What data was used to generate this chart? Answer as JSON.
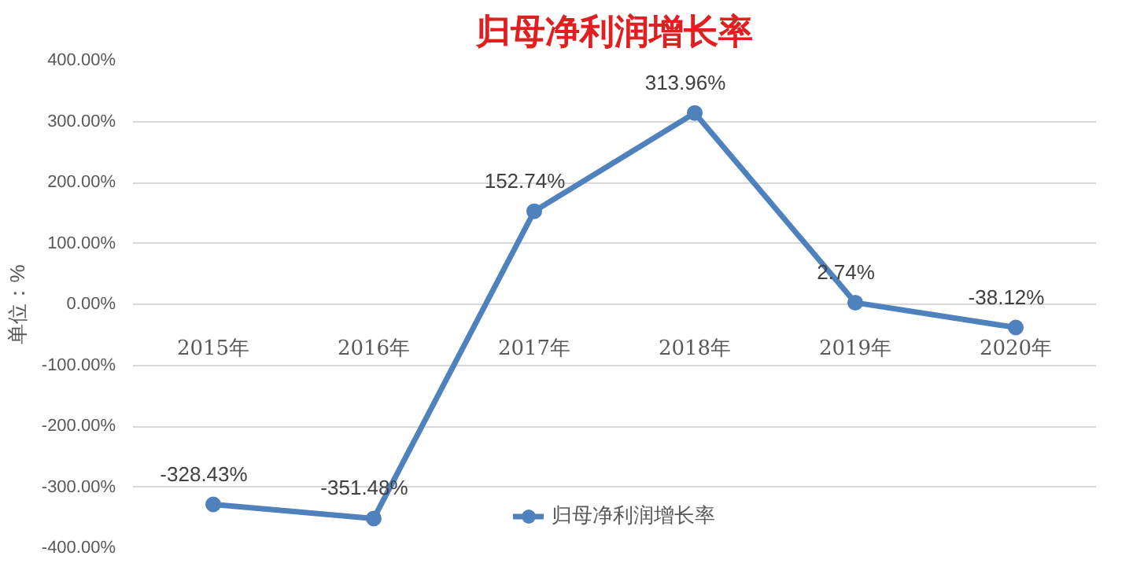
{
  "chart_data": {
    "type": "line",
    "title": "归母净利润增长率",
    "ylabel": "单位：%",
    "categories": [
      "2015年",
      "2016年",
      "2017年",
      "2018年",
      "2019年",
      "2020年"
    ],
    "series": [
      {
        "name": "归母净利润增长率",
        "color": "#4f81bd",
        "values": [
          -328.43,
          -351.48,
          152.74,
          313.96,
          2.74,
          -38.12
        ],
        "value_labels": [
          "-328.43%",
          "-351.48%",
          "152.74%",
          "313.96%",
          "2.74%",
          "-38.12%"
        ]
      }
    ],
    "ylim": [
      -400,
      400
    ],
    "yticks": [
      {
        "value": -400,
        "label": "-400.00%"
      },
      {
        "value": -300,
        "label": "-300.00%"
      },
      {
        "value": -200,
        "label": "-200.00%"
      },
      {
        "value": -100,
        "label": "-100.00%"
      },
      {
        "value": 0,
        "label": "0.00%"
      },
      {
        "value": 100,
        "label": "100.00%"
      },
      {
        "value": 200,
        "label": "200.00%"
      },
      {
        "value": 300,
        "label": "300.00%"
      },
      {
        "value": 400,
        "label": "400.00%"
      }
    ],
    "grid": "y",
    "legend": "bottom",
    "marker": "circle",
    "line_style": "solid"
  }
}
